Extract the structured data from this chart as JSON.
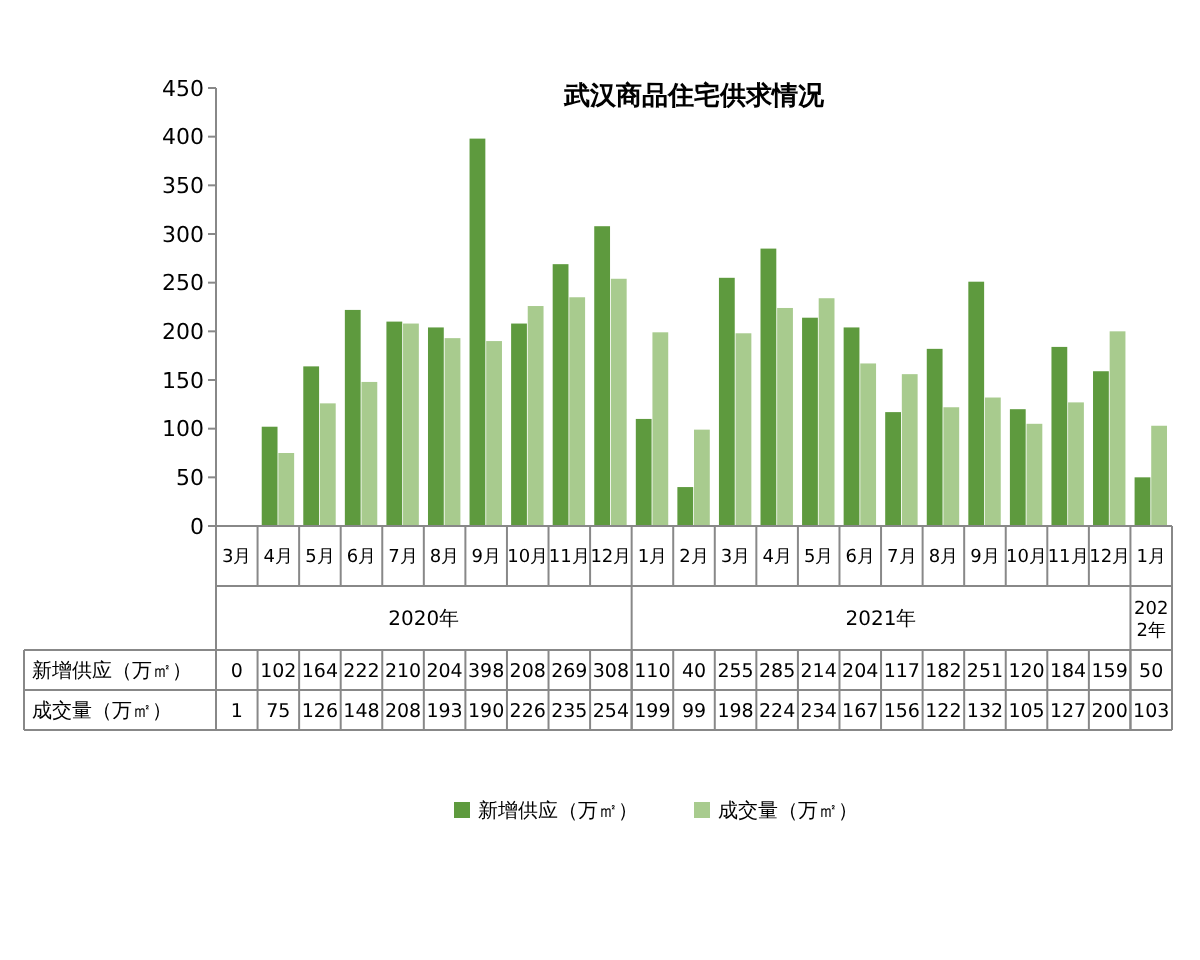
{
  "chart_data": {
    "type": "bar",
    "title": "武汉商品住宅供求情况",
    "categories": [
      "3月",
      "4月",
      "5月",
      "6月",
      "7月",
      "8月",
      "9月",
      "10月",
      "11月",
      "12月",
      "1月",
      "2月",
      "3月",
      "4月",
      "5月",
      "6月",
      "7月",
      "8月",
      "9月",
      "10月",
      "11月",
      "12月",
      "1月"
    ],
    "series": [
      {
        "name": "新增供应（万㎡）",
        "color": "#5e9a3e",
        "values": [
          0,
          102,
          164,
          222,
          210,
          204,
          398,
          208,
          269,
          308,
          110,
          40,
          255,
          285,
          214,
          204,
          117,
          182,
          251,
          120,
          184,
          159,
          50
        ]
      },
      {
        "name": "成交量（万㎡）",
        "color": "#a8cb8e",
        "values": [
          1,
          75,
          126,
          148,
          208,
          193,
          190,
          226,
          235,
          254,
          199,
          99,
          198,
          224,
          234,
          167,
          156,
          122,
          132,
          105,
          127,
          200,
          103
        ]
      }
    ],
    "annotations": [
      "2020年",
      "2021年",
      "2022年"
    ],
    "ylim": [
      0,
      450
    ],
    "yticks": [
      0,
      50,
      100,
      150,
      200,
      250,
      300,
      350,
      400,
      450
    ],
    "grid": false,
    "legend": "bottom",
    "data_labels": true
  }
}
